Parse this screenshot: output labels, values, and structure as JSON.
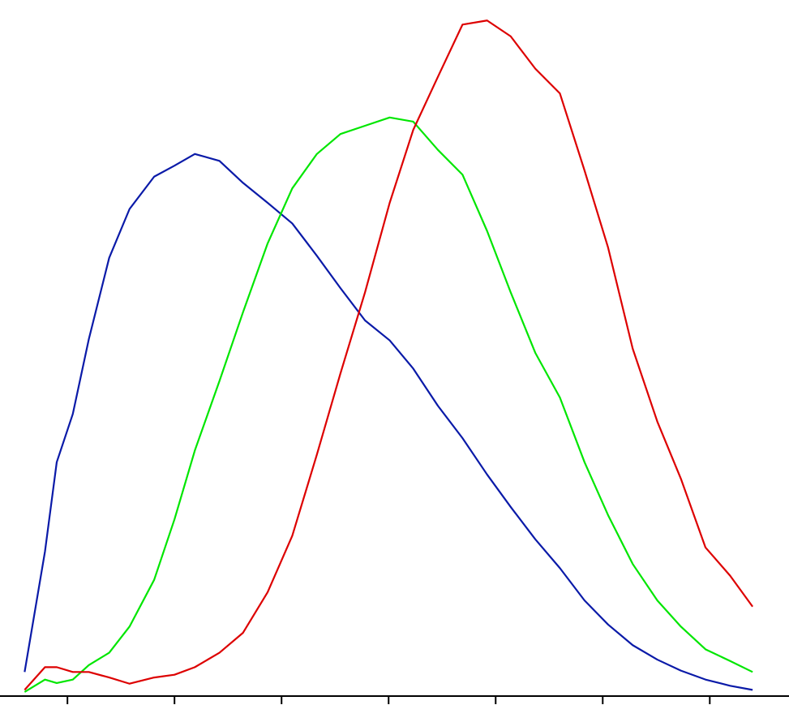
{
  "chart_data": {
    "type": "line",
    "x": [
      0.6,
      0.79,
      0.9,
      1.05,
      1.2,
      1.39,
      1.58,
      1.81,
      2.0,
      2.19,
      2.42,
      2.64,
      2.87,
      3.1,
      3.33,
      3.55,
      3.78,
      4.01,
      4.23,
      4.46,
      4.69,
      4.92,
      5.14,
      5.37,
      5.6,
      5.83,
      6.05,
      6.28,
      6.51,
      6.73,
      6.96,
      7.19,
      7.4
    ],
    "series": [
      {
        "color": "#0a1aa8",
        "values": [
          3.5,
          21.0,
          34.0,
          41.0,
          51.9,
          63.7,
          70.8,
          75.5,
          77.1,
          78.8,
          77.8,
          74.6,
          71.7,
          68.7,
          64.0,
          59.3,
          54.6,
          51.7,
          47.6,
          42.2,
          37.5,
          32.2,
          27.5,
          22.8,
          18.6,
          13.9,
          10.4,
          7.4,
          5.3,
          3.7,
          2.4,
          1.5,
          0.9
        ]
      },
      {
        "color": "#00e600",
        "values": [
          0.6,
          2.4,
          1.9,
          2.4,
          4.5,
          6.3,
          10.1,
          16.9,
          25.7,
          35.7,
          45.8,
          55.8,
          65.8,
          73.8,
          78.8,
          81.7,
          82.9,
          84.1,
          83.5,
          79.4,
          75.8,
          67.6,
          58.7,
          49.9,
          43.4,
          34.0,
          26.3,
          19.2,
          13.9,
          10.1,
          6.8,
          5.1,
          3.5
        ]
      },
      {
        "color": "#dd0000",
        "values": [
          0.9,
          4.2,
          4.2,
          3.5,
          3.5,
          2.7,
          1.8,
          2.7,
          3.1,
          4.2,
          6.3,
          9.2,
          15.1,
          23.3,
          35.1,
          46.9,
          58.7,
          71.7,
          82.3,
          90.0,
          97.6,
          98.2,
          95.9,
          91.2,
          87.6,
          76.4,
          65.2,
          50.5,
          39.9,
          31.6,
          21.6,
          17.5,
          13.0
        ]
      }
    ],
    "xlim": [
      0.37,
      7.74
    ],
    "xticks": [
      1,
      2,
      3,
      4,
      5,
      6,
      7
    ],
    "ylim": [
      0,
      100
    ]
  }
}
